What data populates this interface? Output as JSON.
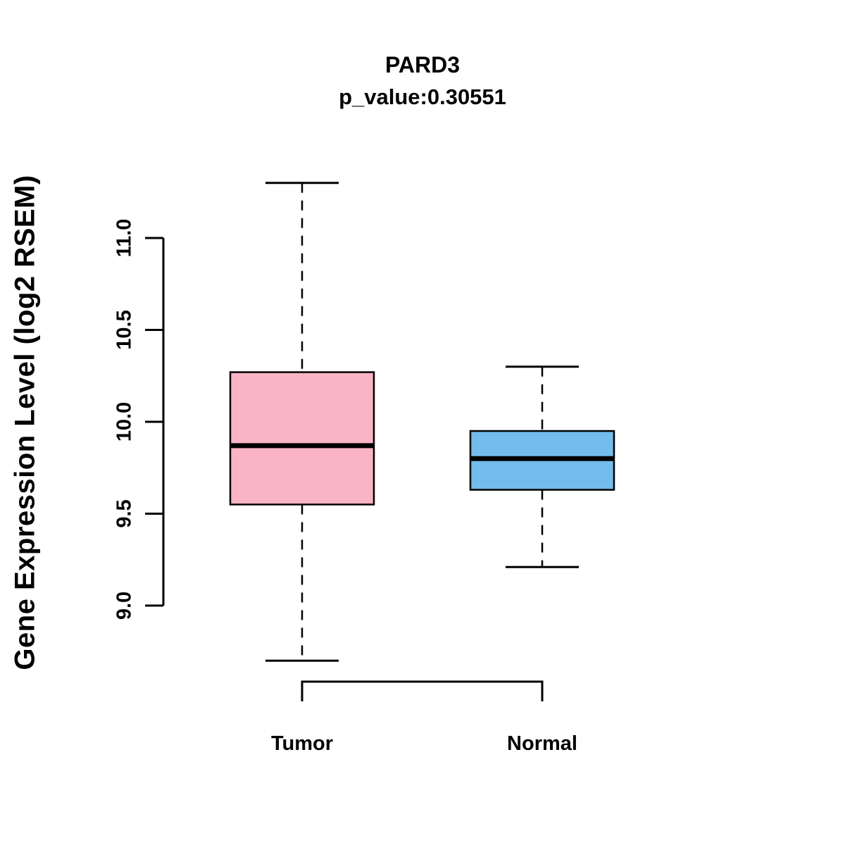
{
  "title": "PARD3",
  "subtitle": "p_value:0.30551",
  "ylabel": "Gene Expression Level (log2 RSEM)",
  "chart_data": {
    "type": "boxplot",
    "title": "PARD3",
    "subtitle": "p_value:0.30551",
    "ylabel": "Gene Expression Level (log2 RSEM)",
    "categories": [
      "Tumor",
      "Normal"
    ],
    "series": [
      {
        "name": "Tumor",
        "min": 8.7,
        "q1": 9.55,
        "median": 9.87,
        "q3": 10.27,
        "max": 11.3,
        "color": "#FBB4C4"
      },
      {
        "name": "Normal",
        "min": 9.21,
        "q1": 9.63,
        "median": 9.8,
        "q3": 9.95,
        "max": 10.3,
        "color": "#74BCEC"
      }
    ],
    "yticks": [
      9.0,
      9.5,
      10.0,
      10.5,
      11.0
    ],
    "ylim": [
      8.55,
      11.45
    ],
    "axis_color": "#000000",
    "grid": false,
    "legend": "none"
  }
}
